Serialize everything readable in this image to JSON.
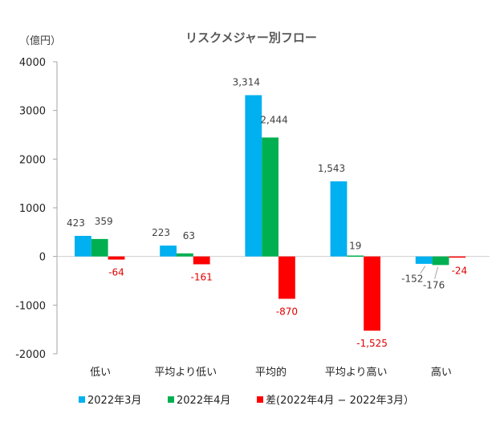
{
  "chart_data": {
    "type": "bar",
    "title": "リスクメジャー別フロー",
    "ylabel": "（億円）",
    "xlabel": "",
    "ylim": [
      -2000,
      4000
    ],
    "yticks": [
      4000,
      3000,
      2000,
      1000,
      0,
      -1000,
      -2000
    ],
    "grid": false,
    "legend_position": "bottom",
    "categories": [
      "低い",
      "平均より低い",
      "平均的",
      "平均より高い",
      "高い"
    ],
    "series": [
      {
        "name": "2022年3月",
        "color": "#00B0F0",
        "label_color": "#404040",
        "values": [
          423,
          223,
          3314,
          1543,
          -152
        ],
        "labels": [
          "423",
          "223",
          "3,314",
          "1,543",
          "-152"
        ]
      },
      {
        "name": "2022年4月",
        "color": "#00B050",
        "label_color": "#404040",
        "values": [
          359,
          63,
          2444,
          19,
          -176
        ],
        "labels": [
          "359",
          "63",
          "2,444",
          "19",
          "-176"
        ]
      },
      {
        "name": "差(2022年4月 − 2022年3月）",
        "color": "#FF0000",
        "label_color": "#E00000",
        "values": [
          -64,
          -161,
          -870,
          -1525,
          -24
        ],
        "labels": [
          "-64",
          "-161",
          "-870",
          "-1,525",
          "-24"
        ]
      }
    ]
  }
}
